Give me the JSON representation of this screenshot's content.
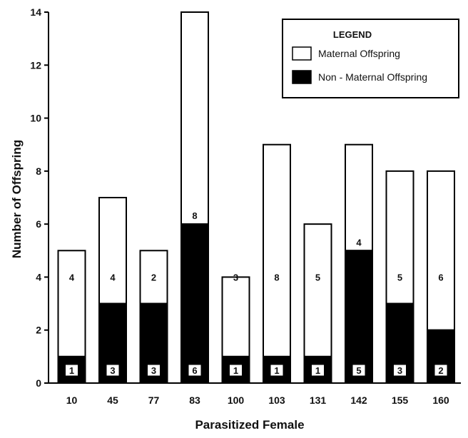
{
  "chart_data": {
    "type": "bar",
    "stacked": true,
    "xlabel": "Parasitized Female",
    "ylabel": "Number of Offspring",
    "ylim": [
      0,
      14
    ],
    "yticks": [
      0,
      2,
      4,
      6,
      8,
      10,
      12,
      14
    ],
    "categories": [
      "10",
      "45",
      "77",
      "83",
      "100",
      "103",
      "131",
      "142",
      "155",
      "160"
    ],
    "series": [
      {
        "name": "Non - Maternal Offspring",
        "color": "#000000",
        "values": [
          1,
          3,
          3,
          6,
          1,
          1,
          1,
          5,
          3,
          2
        ]
      },
      {
        "name": "Maternal Offspring",
        "color": "#ffffff",
        "values": [
          4,
          4,
          2,
          8,
          3,
          8,
          5,
          4,
          5,
          6
        ]
      }
    ],
    "legend": {
      "title": "LEGEND",
      "position": "top-right",
      "entries": [
        "Maternal Offspring",
        "Non - Maternal Offspring"
      ]
    },
    "grid": false
  }
}
